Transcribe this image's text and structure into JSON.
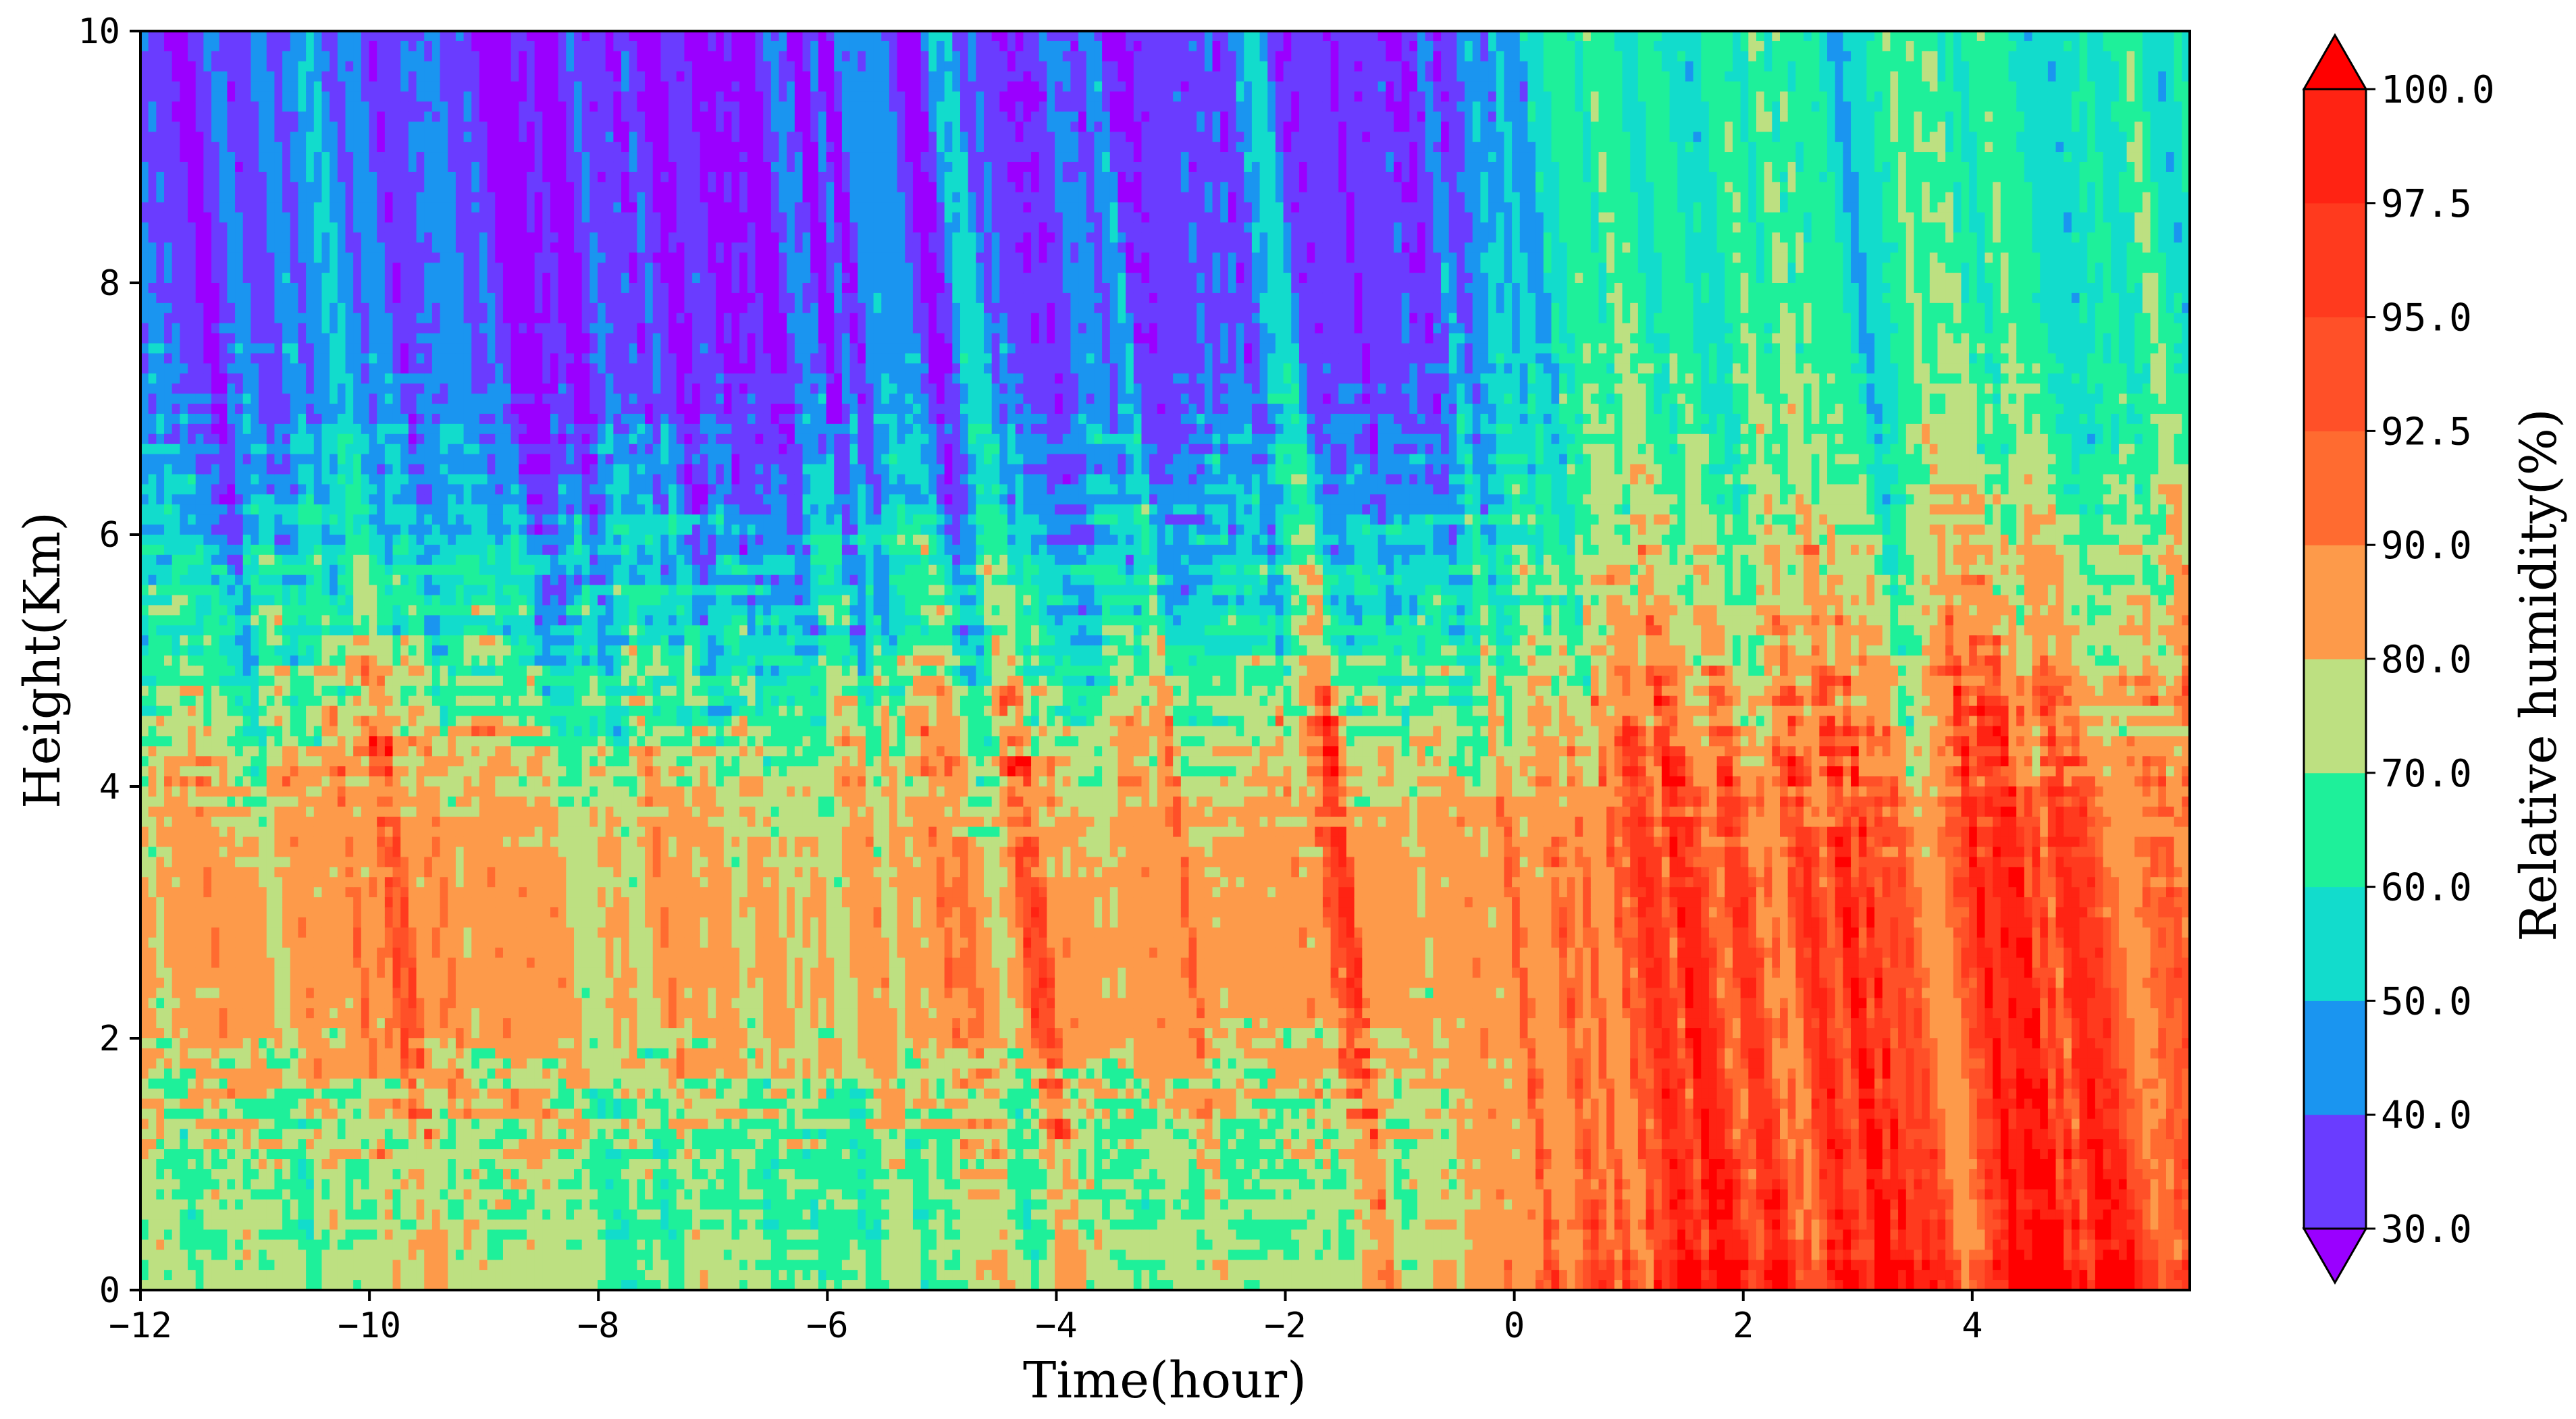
{
  "chart_data": {
    "type": "heatmap",
    "subtype": "filled-contour",
    "xlabel": "Time(hour)",
    "ylabel": "Height(Km)",
    "xlim": [
      -12,
      5.9
    ],
    "ylim": [
      0,
      10
    ],
    "xticks": [
      "-12",
      "-10",
      "-8",
      "-6",
      "-4",
      "-2",
      "0",
      "2",
      "4"
    ],
    "yticks": [
      "0",
      "2",
      "4",
      "6",
      "8",
      "10"
    ],
    "colorbar": {
      "label": "Relative humidity(%)",
      "tick_labels": [
        "30.0",
        "40.0",
        "50.0",
        "60.0",
        "70.0",
        "80.0",
        "90.0",
        "92.5",
        "95.0",
        "97.5",
        "100.0"
      ],
      "levels": [
        30,
        40,
        50,
        60,
        70,
        80,
        90,
        92.5,
        95,
        97.5,
        100
      ],
      "colors": [
        "#6a3cff",
        "#1a95f0",
        "#12dccc",
        "#1ef09a",
        "#bde081",
        "#fd9a4a",
        "#ff6b30",
        "#ff5028",
        "#ff3a1e",
        "#ff2313"
      ],
      "extend_low_color": "#9a00ff",
      "extend_high_color": "#ff0000",
      "extend": "both"
    },
    "grid": false,
    "layers": [
      {
        "band": "bottom",
        "before_t0_rh": 75,
        "after_t0_rh": 96
      },
      {
        "band": "0.4-1.0 km",
        "before_t0_rh": 67,
        "after_t0_rh": 94
      },
      {
        "band": "1.5-4 km",
        "before_t0_rh": 85,
        "after_t0_rh": 93
      },
      {
        "band": "4-5 km",
        "before_t0_rh": 72,
        "after_t0_rh": 85
      },
      {
        "band": "5-6.5 km",
        "before_t0_rh": 55,
        "after_t0_rh": 75
      },
      {
        "band": "6.5-10 km",
        "before_t0_rh": 38,
        "after_t0_rh": 62
      }
    ]
  }
}
